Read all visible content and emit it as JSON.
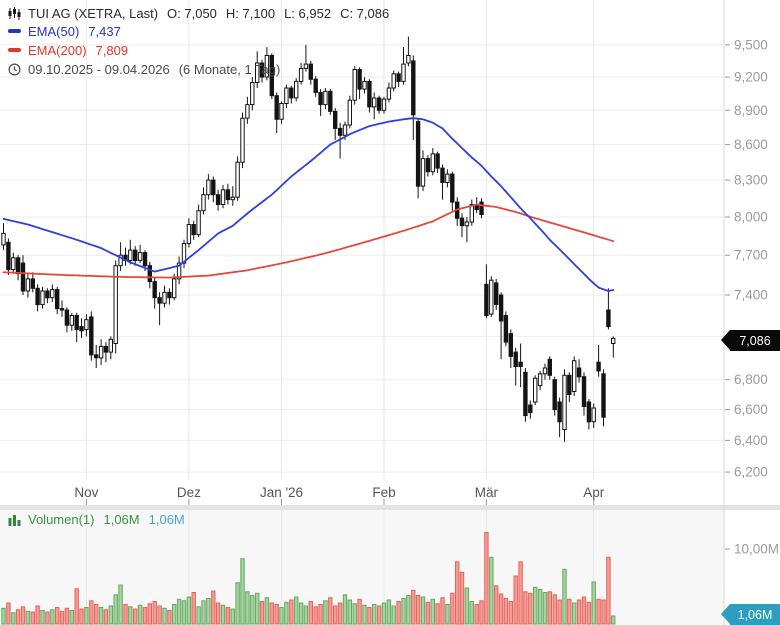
{
  "header": {
    "title": "TUI AG (XETRA, Last)",
    "open": "O: 7,050",
    "high": "H: 7,100",
    "low": "L: 6,952",
    "close": "C: 7,086",
    "ema50_label": "EMA(50)",
    "ema50_value": "7,437",
    "ema200_label": "EMA(200)",
    "ema200_value": "7,809",
    "date_range": "09.10.2025 - 09.04.2026",
    "interval": "(6 Monate, 1 Tag)"
  },
  "volume_legend": {
    "label": "Volumen(1)",
    "value_green": "1,06M",
    "value_blue": "1,06M"
  },
  "tags": {
    "price_tag": "7,086",
    "volume_tag": "1,06M"
  },
  "colors": {
    "ema50": "#2c3fe0",
    "ema200": "#e4483c",
    "candle_stroke": "#141414",
    "up_fill": "#ffffff",
    "down_fill": "#141414",
    "vol_up_fill": "#a8d3a0",
    "vol_up_stroke": "#63a963",
    "vol_down_fill": "#f59a94",
    "vol_down_stroke": "#e4645c",
    "grid_h": "#ededed",
    "grid_v": "#e7e7e7",
    "axis_line": "#d9d9d9",
    "axis_text": "#9b9b9b",
    "date_text": "#555555",
    "vol_pane_bg": "#f7f7f7",
    "divider": "#e3e3e3"
  },
  "chart_data": {
    "type": "candlestick+volume",
    "symbol": "TUI AG",
    "exchange": "XETRA",
    "timeframe": "6 Monate, 1 Tag",
    "price_scale": "log",
    "price_ticks": [
      {
        "label": "9,500",
        "value": 9500
      },
      {
        "label": "9,200",
        "value": 9200
      },
      {
        "label": "8,900",
        "value": 8900
      },
      {
        "label": "8,600",
        "value": 8600
      },
      {
        "label": "8,300",
        "value": 8300
      },
      {
        "label": "8,000",
        "value": 8000
      },
      {
        "label": "7,700",
        "value": 7700
      },
      {
        "label": "7,400",
        "value": 7400
      },
      {
        "label": "7,100",
        "value": 7100
      },
      {
        "label": "6,800",
        "value": 6800
      },
      {
        "label": "6,600",
        "value": 6600
      },
      {
        "label": "6,400",
        "value": 6400
      },
      {
        "label": "6,200",
        "value": 6200
      }
    ],
    "volume_tick": {
      "label": "10,00M",
      "value": 10
    },
    "months": [
      {
        "label": "Nov",
        "i": 17
      },
      {
        "label": "Dez",
        "i": 38
      },
      {
        "label": "Jan '26",
        "i": 57
      },
      {
        "label": "Feb",
        "i": 78
      },
      {
        "label": "Mär",
        "i": 99
      },
      {
        "label": "Apr",
        "i": 121
      }
    ],
    "candles": [
      [
        7780,
        7950,
        7740,
        7870
      ],
      [
        7800,
        7830,
        7550,
        7590
      ],
      [
        7590,
        7720,
        7560,
        7680
      ],
      [
        7680,
        7700,
        7510,
        7560
      ],
      [
        7640,
        7700,
        7400,
        7430
      ],
      [
        7430,
        7560,
        7380,
        7520
      ],
      [
        7520,
        7570,
        7420,
        7450
      ],
      [
        7450,
        7480,
        7280,
        7330
      ],
      [
        7330,
        7460,
        7300,
        7430
      ],
      [
        7430,
        7450,
        7340,
        7380
      ],
      [
        7380,
        7480,
        7350,
        7440
      ],
      [
        7440,
        7460,
        7260,
        7300
      ],
      [
        7300,
        7360,
        7240,
        7290
      ],
      [
        7290,
        7310,
        7130,
        7180
      ],
      [
        7180,
        7270,
        7140,
        7250
      ],
      [
        7250,
        7270,
        7060,
        7150
      ],
      [
        7170,
        7230,
        7090,
        7140
      ],
      [
        7150,
        7260,
        7100,
        7220
      ],
      [
        7240,
        7280,
        6930,
        6970
      ],
      [
        6970,
        7040,
        6880,
        6950
      ],
      [
        6950,
        7080,
        6900,
        7030
      ],
      [
        7030,
        7060,
        6920,
        6990
      ],
      [
        6990,
        7100,
        6940,
        7080
      ],
      [
        7050,
        7660,
        6980,
        7620
      ],
      [
        7620,
        7800,
        7580,
        7700
      ],
      [
        7700,
        7760,
        7620,
        7660
      ],
      [
        7660,
        7820,
        7630,
        7740
      ],
      [
        7740,
        7770,
        7620,
        7660
      ],
      [
        7660,
        7780,
        7640,
        7720
      ],
      [
        7720,
        7740,
        7580,
        7620
      ],
      [
        7620,
        7650,
        7450,
        7500
      ],
      [
        7500,
        7530,
        7300,
        7380
      ],
      [
        7380,
        7420,
        7180,
        7340
      ],
      [
        7340,
        7470,
        7310,
        7420
      ],
      [
        7420,
        7450,
        7330,
        7380
      ],
      [
        7380,
        7560,
        7360,
        7520
      ],
      [
        7520,
        7690,
        7480,
        7640
      ],
      [
        7640,
        7820,
        7600,
        7790
      ],
      [
        7790,
        7990,
        7760,
        7940
      ],
      [
        7940,
        7970,
        7820,
        7860
      ],
      [
        7860,
        8100,
        7840,
        8050
      ],
      [
        8050,
        8240,
        8020,
        8180
      ],
      [
        8180,
        8350,
        8140,
        8300
      ],
      [
        8300,
        8330,
        8120,
        8180
      ],
      [
        8180,
        8220,
        8050,
        8100
      ],
      [
        8100,
        8260,
        8070,
        8220
      ],
      [
        8220,
        8270,
        8100,
        8140
      ],
      [
        8140,
        8250,
        8090,
        8160
      ],
      [
        8160,
        8500,
        8130,
        8450
      ],
      [
        8450,
        8880,
        8400,
        8830
      ],
      [
        8830,
        9020,
        8780,
        8950
      ],
      [
        8950,
        9200,
        8900,
        9150
      ],
      [
        9150,
        9440,
        9100,
        9330
      ],
      [
        9330,
        9360,
        9150,
        9200
      ],
      [
        9200,
        9480,
        9170,
        9400
      ],
      [
        9400,
        9420,
        9000,
        9030
      ],
      [
        9030,
        9060,
        8700,
        8820
      ],
      [
        8820,
        8980,
        8780,
        8960
      ],
      [
        8960,
        9130,
        8920,
        9100
      ],
      [
        9100,
        9120,
        8960,
        9010
      ],
      [
        9010,
        9190,
        8980,
        9160
      ],
      [
        9160,
        9330,
        9130,
        9280
      ],
      [
        9280,
        9500,
        9250,
        9320
      ],
      [
        9320,
        9350,
        9130,
        9180
      ],
      [
        9180,
        9210,
        9020,
        9060
      ],
      [
        9060,
        9090,
        8850,
        8950
      ],
      [
        8950,
        9100,
        8910,
        9070
      ],
      [
        9070,
        9090,
        8860,
        8890
      ],
      [
        8890,
        8920,
        8640,
        8740
      ],
      [
        8740,
        8790,
        8480,
        8680
      ],
      [
        8680,
        8800,
        8640,
        8770
      ],
      [
        8770,
        9030,
        8740,
        8990
      ],
      [
        8990,
        9300,
        8950,
        9270
      ],
      [
        9270,
        9290,
        9000,
        9090
      ],
      [
        9090,
        9200,
        9050,
        9160
      ],
      [
        9160,
        9180,
        8880,
        8930
      ],
      [
        8930,
        9060,
        8820,
        9010
      ],
      [
        9010,
        9030,
        8870,
        8900
      ],
      [
        8900,
        9020,
        8870,
        9000
      ],
      [
        9000,
        9150,
        8970,
        9100
      ],
      [
        9100,
        9260,
        9070,
        9230
      ],
      [
        9230,
        9250,
        9110,
        9160
      ],
      [
        9160,
        9480,
        9130,
        9320
      ],
      [
        9330,
        9580,
        9300,
        9400
      ],
      [
        9350,
        9400,
        8640,
        8860
      ],
      [
        8800,
        8830,
        8150,
        8250
      ],
      [
        8250,
        8550,
        8210,
        8480
      ],
      [
        8480,
        8510,
        8330,
        8370
      ],
      [
        8370,
        8570,
        8340,
        8520
      ],
      [
        8520,
        8540,
        8360,
        8400
      ],
      [
        8400,
        8430,
        8140,
        8280
      ],
      [
        8280,
        8390,
        8240,
        8350
      ],
      [
        8350,
        8370,
        8050,
        8120
      ],
      [
        8120,
        8160,
        7930,
        7990
      ],
      [
        7990,
        8030,
        7840,
        7930
      ],
      [
        7930,
        8000,
        7800,
        7960
      ],
      [
        7960,
        8140,
        7930,
        8100
      ],
      [
        8100,
        8160,
        8030,
        8060
      ],
      [
        8120,
        8150,
        7990,
        8020
      ],
      [
        7480,
        7630,
        7230,
        7250
      ],
      [
        7260,
        7540,
        7240,
        7510
      ],
      [
        7490,
        7520,
        7290,
        7330
      ],
      [
        7400,
        7420,
        6940,
        7210
      ],
      [
        7250,
        7280,
        7030,
        7060
      ],
      [
        7120,
        7150,
        6880,
        6960
      ],
      [
        6990,
        7020,
        6760,
        6890
      ],
      [
        6920,
        7050,
        6750,
        6890
      ],
      [
        6850,
        6880,
        6520,
        6560
      ],
      [
        6630,
        6660,
        6540,
        6580
      ],
      [
        6650,
        6830,
        6630,
        6810
      ],
      [
        6760,
        6860,
        6730,
        6840
      ],
      [
        6840,
        6910,
        6800,
        6880
      ],
      [
        6940,
        6960,
        6800,
        6830
      ],
      [
        6800,
        6820,
        6560,
        6600
      ],
      [
        6650,
        6680,
        6420,
        6520
      ],
      [
        6470,
        6870,
        6390,
        6830
      ],
      [
        6830,
        6850,
        6650,
        6700
      ],
      [
        6720,
        6960,
        6690,
        6930
      ],
      [
        6880,
        6940,
        6780,
        6820
      ],
      [
        6820,
        6850,
        6560,
        6620
      ],
      [
        6650,
        6670,
        6470,
        6520
      ],
      [
        6520,
        6640,
        6480,
        6610
      ],
      [
        6920,
        7040,
        6820,
        6860
      ],
      [
        6840,
        6870,
        6490,
        6550
      ],
      [
        7290,
        7450,
        7150,
        7170
      ],
      [
        7050,
        7100,
        6952,
        7086
      ]
    ],
    "volumes_m": [
      2.1,
      2.8,
      1.5,
      1.9,
      2.3,
      1.7,
      1.6,
      2.4,
      1.8,
      1.6,
      1.9,
      2.2,
      1.7,
      2.1,
      1.8,
      4.7,
      2.0,
      2.2,
      3.1,
      2.6,
      2.2,
      1.9,
      2.4,
      3.9,
      5.2,
      2.6,
      2.3,
      2.0,
      2.5,
      2.2,
      2.7,
      3.0,
      2.4,
      2.1,
      1.8,
      2.6,
      3.3,
      3.1,
      3.6,
      4.2,
      2.3,
      3.1,
      3.4,
      4.4,
      2.8,
      2.5,
      2.2,
      2.0,
      5.5,
      8.7,
      4.3,
      3.8,
      4.1,
      3.0,
      3.5,
      2.8,
      2.6,
      2.2,
      2.9,
      3.2,
      3.6,
      2.8,
      2.4,
      3.0,
      2.3,
      2.6,
      3.1,
      3.5,
      2.4,
      2.8,
      3.9,
      3.2,
      2.7,
      3.3,
      2.5,
      2.2,
      2.6,
      2.4,
      2.8,
      3.2,
      2.4,
      3.0,
      3.4,
      3.8,
      4.5,
      3.8,
      3.6,
      2.9,
      3.3,
      2.7,
      3.5,
      2.6,
      4.1,
      8.3,
      6.9,
      4.8,
      3.0,
      2.6,
      3.1,
      12.2,
      8.9,
      5.1,
      4.0,
      3.4,
      3.0,
      6.4,
      8.3,
      4.3,
      4.1,
      4.9,
      4.6,
      4.2,
      4.3,
      3.9,
      3.2,
      7.3,
      3.3,
      2.8,
      3.2,
      3.6,
      2.9,
      5.6,
      3.3,
      3.2,
      8.9,
      1.06
    ],
    "ema50_anchors": [
      [
        0,
        7985
      ],
      [
        5,
        7940
      ],
      [
        10,
        7880
      ],
      [
        15,
        7820
      ],
      [
        20,
        7755
      ],
      [
        26,
        7645
      ],
      [
        31,
        7575
      ],
      [
        36,
        7620
      ],
      [
        40,
        7740
      ],
      [
        44,
        7870
      ],
      [
        47,
        7930
      ],
      [
        51,
        8060
      ],
      [
        55,
        8180
      ],
      [
        59,
        8330
      ],
      [
        63,
        8460
      ],
      [
        67,
        8600
      ],
      [
        71,
        8690
      ],
      [
        75,
        8760
      ],
      [
        79,
        8800
      ],
      [
        82,
        8820
      ],
      [
        84,
        8830
      ],
      [
        86,
        8820
      ],
      [
        88,
        8790
      ],
      [
        90,
        8740
      ],
      [
        92,
        8650
      ],
      [
        94,
        8570
      ],
      [
        96,
        8490
      ],
      [
        98,
        8420
      ],
      [
        100,
        8330
      ],
      [
        102,
        8250
      ],
      [
        104,
        8160
      ],
      [
        106,
        8070
      ],
      [
        108,
        7990
      ],
      [
        110,
        7905
      ],
      [
        112,
        7820
      ],
      [
        114,
        7745
      ],
      [
        116,
        7670
      ],
      [
        118,
        7595
      ],
      [
        120,
        7520
      ],
      [
        122,
        7455
      ],
      [
        124,
        7430
      ],
      [
        125,
        7437
      ]
    ],
    "ema200_anchors": [
      [
        0,
        7570
      ],
      [
        12,
        7550
      ],
      [
        24,
        7535
      ],
      [
        34,
        7530
      ],
      [
        42,
        7545
      ],
      [
        50,
        7585
      ],
      [
        58,
        7645
      ],
      [
        66,
        7715
      ],
      [
        74,
        7800
      ],
      [
        82,
        7890
      ],
      [
        88,
        7965
      ],
      [
        93,
        8060
      ],
      [
        97,
        8100
      ],
      [
        101,
        8080
      ],
      [
        105,
        8040
      ],
      [
        109,
        7990
      ],
      [
        113,
        7945
      ],
      [
        117,
        7900
      ],
      [
        121,
        7855
      ],
      [
        125,
        7809
      ]
    ]
  }
}
